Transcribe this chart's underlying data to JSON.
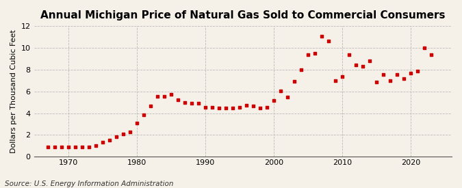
{
  "title": "Annual Michigan Price of Natural Gas Sold to Commercial Consumers",
  "ylabel": "Dollars per Thousand Cubic Feet",
  "source": "Source: U.S. Energy Information Administration",
  "background_color": "#f5f0e8",
  "dot_color": "#cc0000",
  "years": [
    1967,
    1968,
    1969,
    1970,
    1971,
    1972,
    1973,
    1974,
    1975,
    1976,
    1977,
    1978,
    1979,
    1980,
    1981,
    1982,
    1983,
    1984,
    1985,
    1986,
    1987,
    1988,
    1989,
    1990,
    1991,
    1992,
    1993,
    1994,
    1995,
    1996,
    1997,
    1998,
    1999,
    2000,
    2001,
    2002,
    2003,
    2004,
    2005,
    2006,
    2007,
    2008,
    2009,
    2010,
    2011,
    2012,
    2013,
    2014,
    2015,
    2016,
    2017,
    2018,
    2019,
    2020,
    2021,
    2022,
    2023
  ],
  "values": [
    0.87,
    0.87,
    0.88,
    0.88,
    0.9,
    0.89,
    0.93,
    1.05,
    1.35,
    1.55,
    1.85,
    2.1,
    2.25,
    3.1,
    3.85,
    4.65,
    5.55,
    5.55,
    5.75,
    5.2,
    5.0,
    4.9,
    4.9,
    4.55,
    4.55,
    4.45,
    4.45,
    4.45,
    4.55,
    4.75,
    4.65,
    4.45,
    4.55,
    5.15,
    6.05,
    5.45,
    6.95,
    8.0,
    9.4,
    9.5,
    11.05,
    10.65,
    7.0,
    7.35,
    9.35,
    8.4,
    8.3,
    8.8,
    6.85,
    7.55,
    7.0,
    7.55,
    7.15,
    7.7,
    7.85,
    10.0,
    9.35
  ],
  "xlim": [
    1965,
    2026
  ],
  "ylim": [
    0,
    12
  ],
  "yticks": [
    0,
    2,
    4,
    6,
    8,
    10,
    12
  ],
  "xticks": [
    1970,
    1980,
    1990,
    2000,
    2010,
    2020
  ],
  "grid_color": "#bbbbbb",
  "title_fontsize": 11,
  "label_fontsize": 8,
  "tick_fontsize": 8,
  "source_fontsize": 7.5
}
